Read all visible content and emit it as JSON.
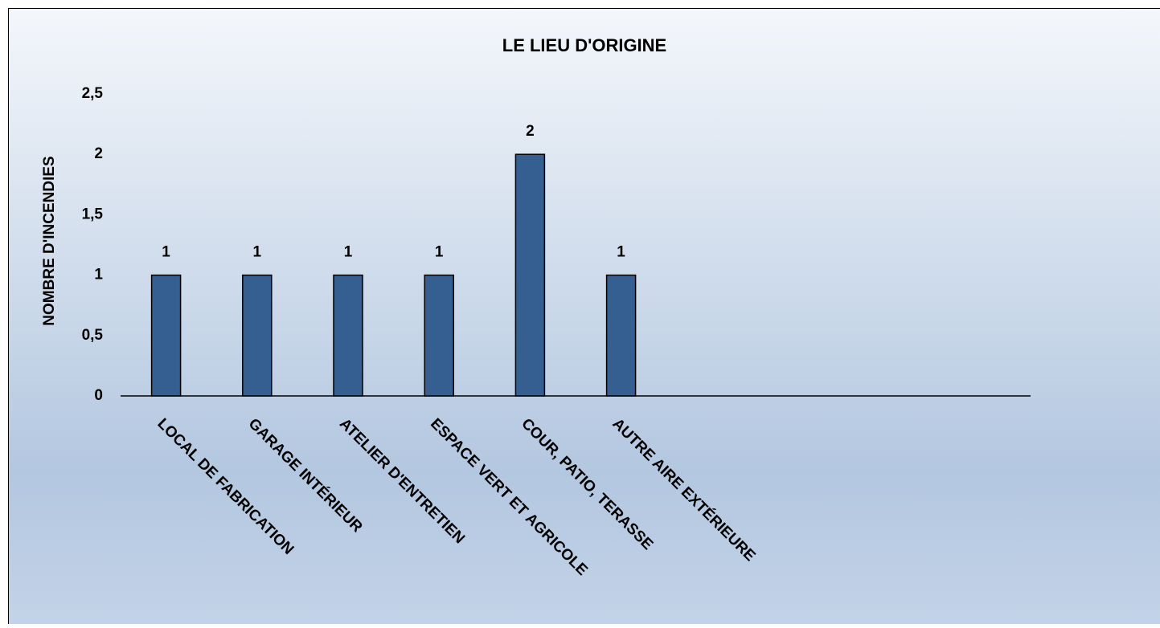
{
  "chart_data": {
    "type": "bar",
    "title": "LE LIEU D'ORIGINE",
    "y_label": "NOMBRE D'INCENDIES",
    "categories": [
      "LOCAL DE FABRICATION",
      "GARAGE INTÉRIEUR",
      "ATELIER D'ENTRETIEN",
      "ESPACE VERT ET AGRICOLE",
      "COUR, PATIO, TERASSE",
      "AUTRE AIRE EXTÉRIEURE",
      null,
      null,
      null,
      null
    ],
    "values": [
      1,
      1,
      1,
      1,
      2,
      1,
      null,
      null,
      null,
      null
    ],
    "color": "#355f91",
    "ylim": [
      0,
      2.5
    ],
    "yticks": [
      0,
      {
        "value": 0.5,
        "label": "0,5"
      },
      1,
      {
        "value": 1.5,
        "label": "1,5"
      },
      2,
      {
        "value": 2.5,
        "label": "2,5"
      }
    ],
    "grid": false
  }
}
